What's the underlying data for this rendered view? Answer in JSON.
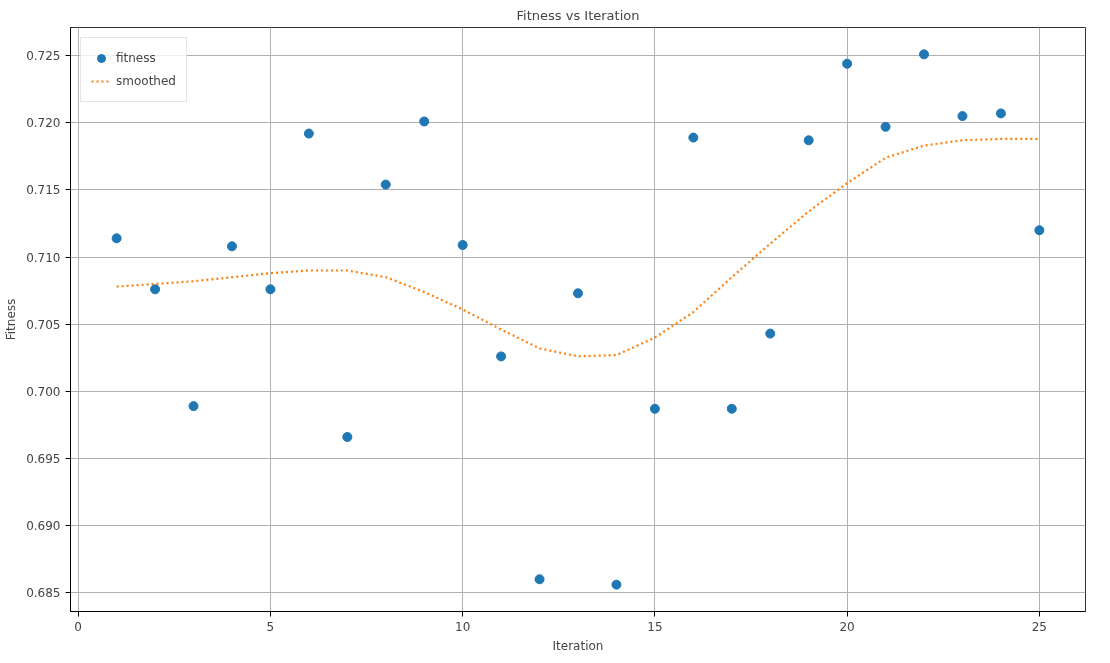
{
  "chart_data": {
    "type": "scatter",
    "title": "Fitness vs Iteration",
    "xlabel": "Iteration",
    "ylabel": "Fitness",
    "x": [
      1,
      2,
      3,
      4,
      5,
      6,
      7,
      8,
      9,
      10,
      11,
      12,
      13,
      14,
      15,
      16,
      17,
      18,
      19,
      20,
      21,
      22,
      23,
      24,
      25
    ],
    "series": [
      {
        "name": "fitness",
        "color": "#1f77b4",
        "marker": "circle",
        "values": [
          0.7114,
          0.7076,
          0.6989,
          0.7108,
          0.7076,
          0.7192,
          0.6966,
          0.7154,
          0.7201,
          0.7109,
          0.7026,
          0.686,
          0.7073,
          0.6856,
          0.6987,
          0.7189,
          0.6987,
          0.7043,
          0.7187,
          0.7244,
          0.7197,
          0.7251,
          0.7205,
          0.7207,
          0.712
        ]
      },
      {
        "name": "smoothed",
        "type": "line",
        "color": "#ff7f0e",
        "line_style": "dotted",
        "values": [
          0.7078,
          0.708,
          0.7082,
          0.7085,
          0.7088,
          0.709,
          0.709,
          0.7085,
          0.7074,
          0.7061,
          0.7046,
          0.7032,
          0.7026,
          0.7027,
          0.704,
          0.7059,
          0.7085,
          0.711,
          0.7134,
          0.7155,
          0.7174,
          0.7183,
          0.7187,
          0.7188,
          0.7188
        ]
      }
    ],
    "xlim": [
      -0.2,
      26.2
    ],
    "ylim": [
      0.6836,
      0.7271
    ],
    "xticks": [
      0,
      5,
      10,
      15,
      20,
      25
    ],
    "yticks": [
      {
        "value": 0.685,
        "label": "0.685"
      },
      {
        "value": 0.69,
        "label": "0.690"
      },
      {
        "value": 0.695,
        "label": "0.695"
      },
      {
        "value": 0.7,
        "label": "0.700"
      },
      {
        "value": 0.705,
        "label": "0.705"
      },
      {
        "value": 0.71,
        "label": "0.710"
      },
      {
        "value": 0.715,
        "label": "0.715"
      },
      {
        "value": 0.72,
        "label": "0.720"
      },
      {
        "value": 0.725,
        "label": "0.725"
      }
    ],
    "grid": true,
    "legend": "top left"
  }
}
